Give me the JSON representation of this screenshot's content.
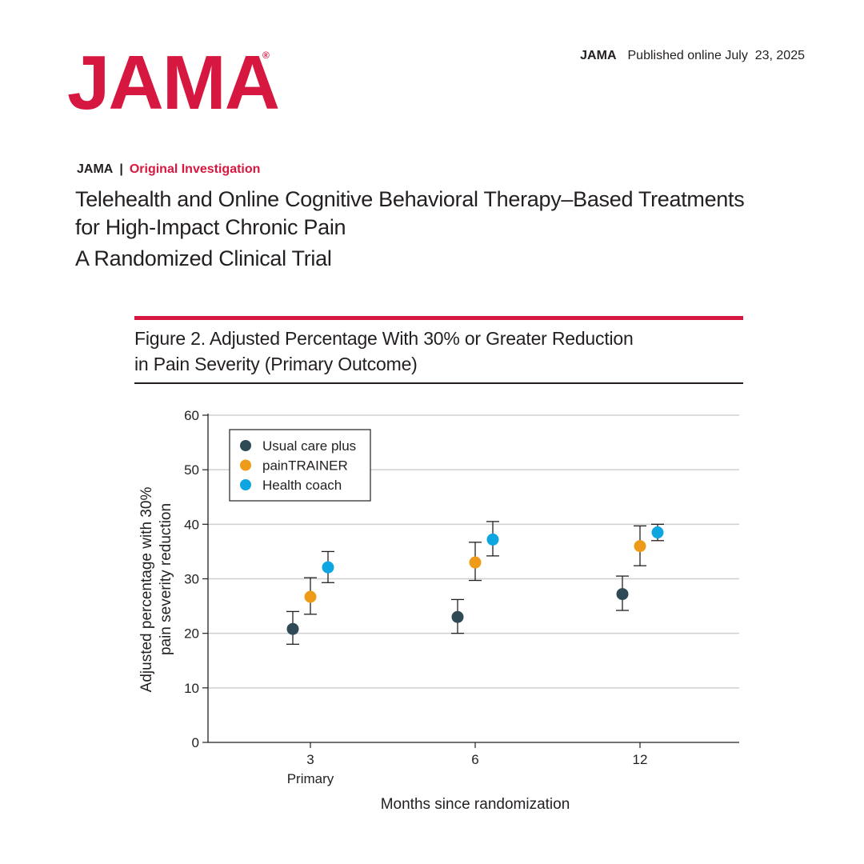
{
  "header": {
    "logo": "JAMA",
    "logo_mark": "®",
    "pub_journal": "JAMA",
    "pub_date": "Published online July  23, 2025"
  },
  "article": {
    "journal": "JAMA",
    "separator": "|",
    "type": "Original Investigation",
    "title_line1": "Telehealth and Online Cognitive Behavioral Therapy–Based Treatments",
    "title_line2": "for High-Impact Chronic Pain",
    "subtitle": "A Randomized Clinical Trial"
  },
  "figure": {
    "title_line1": "Figure 2. Adjusted Percentage With 30% or Greater Reduction",
    "title_line2": "in Pain Severity (Primary Outcome)"
  },
  "colors": {
    "brand_red": "#d6173f",
    "usual_care": "#2f4a56",
    "paintrainer": "#ef9b1a",
    "health_coach": "#0da6e0"
  },
  "chart_data": {
    "type": "scatter",
    "xlabel": "Months since randomization",
    "ylabel_line1": "Adjusted percentage with 30%",
    "ylabel_line2": "pain severity reduction",
    "categories": [
      "3",
      "6",
      "12"
    ],
    "category_sublabels": [
      "Primary",
      "",
      ""
    ],
    "ylim": [
      0,
      60
    ],
    "yticks": [
      0,
      10,
      20,
      30,
      40,
      50,
      60
    ],
    "grid": true,
    "legend_position": "top-left",
    "series": [
      {
        "name": "Usual care plus",
        "color": "#2f4a56",
        "values": [
          20.8,
          23.0,
          27.2
        ],
        "lower": [
          18.0,
          20.0,
          24.2
        ],
        "upper": [
          24.0,
          26.2,
          30.5
        ]
      },
      {
        "name": "painTRAINER",
        "color": "#ef9b1a",
        "values": [
          26.7,
          33.0,
          36.0
        ],
        "lower": [
          23.5,
          29.7,
          32.4
        ],
        "upper": [
          30.2,
          36.7,
          39.7
        ]
      },
      {
        "name": "Health coach",
        "color": "#0da6e0",
        "values": [
          32.1,
          37.2,
          38.5
        ],
        "lower": [
          29.3,
          34.2,
          37.0
        ],
        "upper": [
          35.0,
          40.5,
          40.0
        ]
      }
    ]
  }
}
